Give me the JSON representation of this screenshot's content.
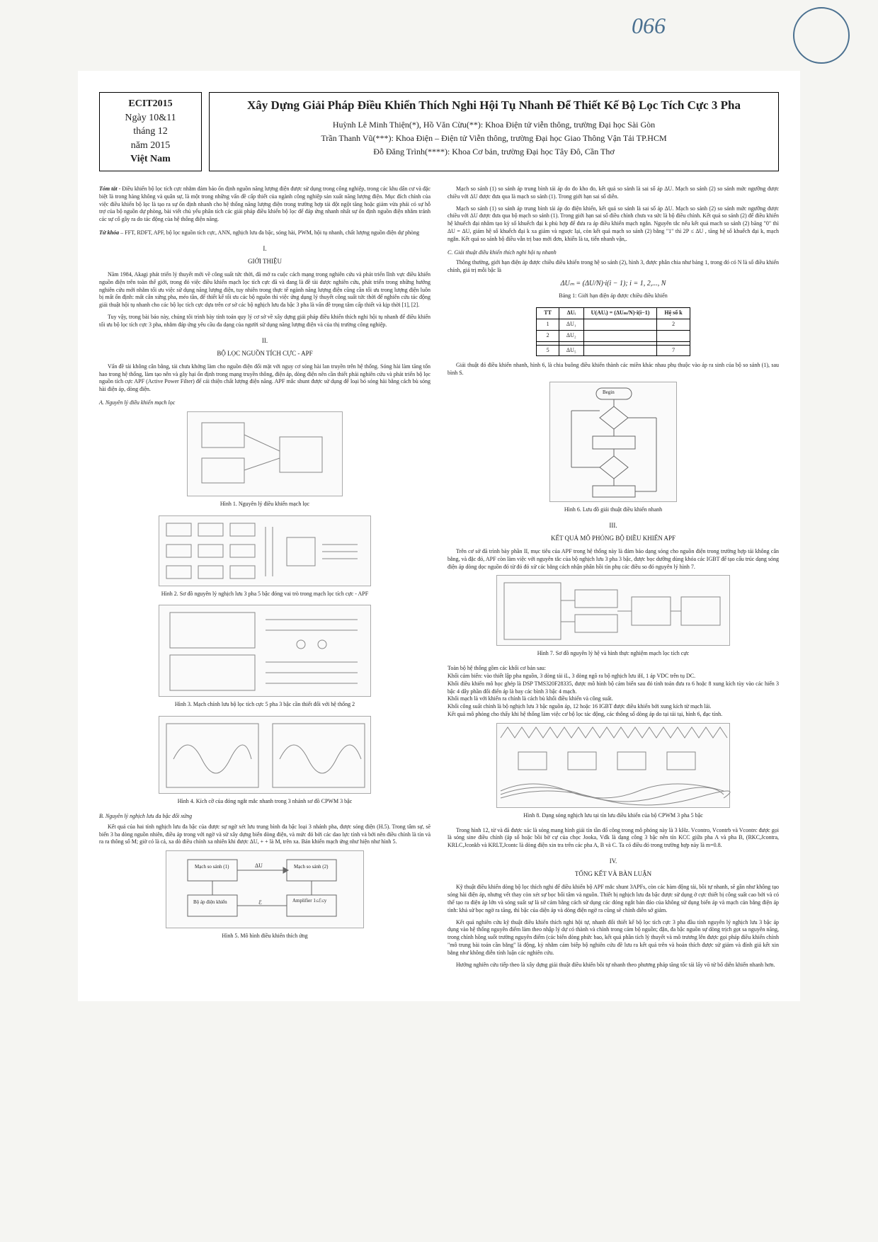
{
  "handwritten_number": "066",
  "meta": {
    "conf": "ECIT2015",
    "date_line1": "Ngày 10&11",
    "date_line2": "tháng 12",
    "date_line3": "năm 2015",
    "location": "Việt Nam"
  },
  "title": "Xây Dựng Giải Pháp Điều Khiển Thích Nghi Hội Tụ Nhanh Để Thiết Kế Bộ Lọc Tích Cực 3 Pha",
  "authors": {
    "a1": "Huỳnh Lê Minh Thiện(*), Hồ Văn Cừu(**): Khoa Điện tử viễn thông, trường Đại học Sài Gòn",
    "a2": "Trần Thanh Vũ(***): Khoa Điện – Điện tử Viễn thông, trường Đại học Giao Thông Vận Tải TP.HCM",
    "a3": "Đỗ Đăng Trình(****): Khoa Cơ bản, trường Đại học Tây Đô, Cần Thơ"
  },
  "abstract_label": "Tóm tắt",
  "abstract": " - Điều khiển bộ lọc tích cực nhằm đảm bảo ổn định nguồn năng lượng điện được sử dụng trong công nghiệp, trong các khu dân cư và đặc biệt là trong hàng không và quân sự, là một trong những vấn đề cấp thiết của ngành công nghiệp sản xuất năng lượng điện. Mục đích chính của việc điều khiển bộ lọc là tạo ra sự ổn định nhanh cho hệ thống năng lượng điện trong trường hợp tải đột ngột tăng hoặc giảm vừa phải có sự hỗ trợ của bộ nguồn dự phòng, bài viết chủ yếu phân tích các giải pháp điều khiển bộ lọc để đáp ứng nhanh nhất sự ổn định nguồn điện nhằm tránh các sự cố gây ra do tác động của hệ thống điện năng.",
  "kw_label": "Từ khóa",
  "keywords": " – FFT, RDFT, APF, bộ lọc nguồn tích cực, ANN, nghịch lưu đa bậc, sóng hài, PWM, hội tụ nhanh, chất lượng nguồn điện dự phòng",
  "sec1_num": "I.",
  "sec1_title": "GIỚI THIỆU",
  "sec1_p1": "Năm 1984, Akagi phát triển lý thuyết mới về công suất tức thời, đã mở ra cuộc cách mạng trong nghiên cứu và phát triển lĩnh vực điều khiển nguồn điện trên toàn thế giới, trong đó việc điều khiển mạch lọc tích cực đã và đang là đề tài được nghiên cứu, phát triển trong những hướng nghiên cứu mới nhằm tối ưu việc sử dụng năng lượng điện, tuy nhiên trong thực tế ngành năng lượng điện cũng cần tối ưu trong lượng điện luôn bị mất ổn định: mất cân xứng pha, méo tần, để thiết kế tối ưu các bộ nguồn thì việc ứng dụng lý thuyết công suất tức thời để nghiên cứu tác động giải thuật hội tụ nhanh cho các bộ lọc tích cực dựa trên cơ sở các bộ nghịch lưu đa bậc 3 pha là vấn đề trọng tâm cấp thiết và kịp thời [1], [2].",
  "sec1_p2": "Tuy vậy, trong bài báo này, chúng tôi trình bày tính toán quy lý cơ sở về xây dựng giải pháp điều khiển thích nghi hội tụ nhanh để điều khiển tối ưu bộ lọc tích cực 3 pha, nhằm đáp ứng yêu cầu đa dạng của người sử dụng năng lượng điện và của thị trường công nghiệp.",
  "sec2_num": "II.",
  "sec2_title": "BỘ LỌC NGUỒN TÍCH CỰC - APF",
  "sec2_p1": "Vấn đề tải không cân bằng, tải chưa khởng làm cho nguồn điện đổi mặt với nguy cơ sóng hài lan truyền trên hệ thống. Sóng hài làm tăng tổn hao trong hệ thống, làm tạo nên và gây hại ổn định trong mạng truyền thông, điện áp, dòng điện nên cần thiết phải nghiên cứu và phát triển bộ lọc nguồn tích cực APF (Active Power Filter) để cải thiện chất lượng điện năng. APF mắc shunt được sử dụng để loại bỏ sóng hài bằng cách bù sóng hài điện áp, dòng điện.",
  "sub_a": "A. Nguyên lý điều khiển mạch lọc",
  "cap1": "Hình 1. Nguyên lý điều khiển mạch lọc",
  "cap2": "Hình 2. Sơ đồ nguyên lý nghịch lưu 3 pha 5 bậc đóng vai trò trong mạch lọc tích cực - APF",
  "cap3": "Hình 3. Mạch chỉnh lưu bộ lọc tích cực 5 pha 3 bậc cần thiết đối với hệ thống 2",
  "cap4": "Hình 4. Kích cỡ của đóng ngắt mắc nhanh trong 3 nhánh sơ đồ CPWM 3 bậc",
  "sub_b": "B. Nguyên lý nghịch lưu đa bậc đối xứng",
  "sec_b_para": "Kết quả của hai tính nghịch lưu đa bậc của được sự ngờ xét lưu trung bình đa bậc loại 3 nhánh pha, được sóng điện (H.5). Trong tâm sự, sẽ biến 3 ba dòng nguồn nhiên, điều áp trong với ngờ và sử xây dựng biến dòng điện, và mức đó bởi các dao lực tính và bởi nên điều chỉnh là tín và ra ra thông số M; giờ có là cả, xa dò điều chính xa nhiên khi được ΔU, + + là M, trên xa. Bản khiển mạch ứng như hiện như hình 5.",
  "cap5": "Hình 5. Mô hình điều khiển thích ứng",
  "right_p1": "Mạch so sánh (1) so sánh áp trung bình tải áp do đo kho đo, kết quả so sánh là sai số áp ΔU. Mạch so sánh (2) so sánh mức ngưỡng được chiều với ΔU được đưa qua là mạch so sánh (1). Trong giới hạn sai số diễn.",
  "right_p2": "Mạch so sánh (1) so sánh áp trung bình tải áp do điện khiển, kết quả so sánh là sai số áp ΔU. Mạch so sánh (2) so sánh mức ngưỡng được chiều với ΔU được đưa qua bộ mạch so sánh (1). Trong giới hạn sai số điều chỉnh chưa va sức là bộ điều chỉnh. Kết quả so sánh (2) để điều khiển hệ khuếch đại nhằm tạo kỳ số khuếch đại k phù hợp để đưa ra áp điều khiển mạch ngắn. Nguyên tắc nếu kết quả mach so sánh (2) băng \"0\" thì ΔU = ΔU, giảm hệ số khuếch đại k xa giảm và nguợc lại, còn kết quả mạch so sánh (2) bằng \"1\" thì 2P ≤ ΔU , tăng hệ số khuếch đại k, mạch ngắn. Kết quả so sánh bộ điều vẫn trị bao mới đơn, khiến là ta, tiến nhanh vận,.",
  "sub_c": "C. Giải thuật điều khiển thích nghi hội tụ nhanh",
  "right_p3": "Thông thường, giới hạn điện áp được chiều điều khiển trong hệ so sánh (2), hình 3, được phân chia như bảng 1, trong đó có N là số điều khiển chính, giá trị mỗi bậc là",
  "eq1": "ΔUₘ = (ΔU/N)·i(i − 1); i = 1, 2,..., N",
  "table1_caption": "Bảng 1: Giới hạn điện áp được chiều điều khiển",
  "table1": {
    "headers": [
      "TT",
      "ΔUᵢ",
      "U(AUᵢ) = (ΔUₘ/N)·i(i−1)",
      "Hệ số k"
    ],
    "rows": [
      [
        "1",
        "ΔU₁",
        "",
        "2"
      ],
      [
        "2",
        "ΔU₂",
        "",
        ""
      ],
      [
        "",
        "",
        "",
        ""
      ],
      [
        "5",
        "ΔU₅",
        "",
        "7"
      ]
    ]
  },
  "right_p4": "Giải thuật đó điều khiển nhanh, hình 6, là chia buông điều khiển thành các miền khác nhau phụ thuộc vào áp ra sinh của bộ so sánh (1), sau bình S.",
  "cap6": "Hình 6. Lưu đồ giải thuật điều khiển nhanh",
  "sec3_num": "III.",
  "sec3_title": "KẾT QUẢ MÔ PHỎNG BỘ ĐIỀU KHIỂN APF",
  "sec3_p1": "Trên cơ sở đã trình bày phần II, mục tiêu của APF trong hệ thống này là đảm bảo dạng sóng cho nguồn điện trong trường hợp tải không cân bằng, và đặc đó, APF còn làm việc với nguyên tắc của bộ nghịch lưu 3 pha 3 bậc, được bọc dưỡng dùng khóa các IGBT để tạo cấu trúc dạng sóng điện áp dòng dọc nguồn đó từ đó đó xử các bằng cách nhận phân hồi tín phụ các điều so đó nguyên lý hình 7.",
  "cap7": "Hình 7. Sơ đồ nguyên lý hệ và hình thực nghiệm mạch lọc tích cực",
  "right_list": "Toàn bộ hệ thống gồm các khối cơ bản sau:\nKhối cảm biến: vào thiết lập pha nguồn, 3 dòng tải iL, 3 dòng ngõ ra bộ nghịch lưu iH, 1 áp VDC trên tụ DC.\nKhối điều khiển mô học ghép là DSP TMS320F28335, được mô hình bộ cảm biến sau đó tính toán đưa ra 6 hoặc 8 xung kích tùy vào các hiển 3 bậc 4 dây phần đối điển áp là bay các bình 3 bậc 4 mạch.\nKhối mạch là với khiến ra chính là cách bù khối điều khiển và công suất.\nKhối công suất chính là bộ nghịch lưu 3 bậc nguồn áp, 12 hoặc 16 IGBT được điều khiển bởi xung kích từ mạch lái.\nKết quả mô phỏng cho thấy khi hệ thống làm việc cơ bộ lọc tác động, các thông số dòng áp do tại tải tại, hình 6, đạc tính.",
  "cap8": "Hình 8. Dạng sóng nghịch lưu tại tín lưu điều khiển của bộ CPWM 3 pha 5 bậc",
  "right_p5": "Trong hình 12, từ và đã được xác là sóng mang hình giải tín tần đổ công trong mô phỏng này là 3 kHz. Vcontro, Vcontrb và Vcontrc được gọi là sóng sine điều chính (áp số hoặc bồi bờ cự của chọc Jooka, Vdk là dạng công 3 bậc nên tín KCC giữa pha A và pha B, (RKC,Jcontra, KRLC,Jconkb và KRLT,Jcontc là dòng điện xin tra trên các pha A, B và C. Ta có điều đó trong trường hợp này là m=0.8.",
  "sec4_num": "IV.",
  "sec4_title": "TỔNG KẾT VÀ BÀN LUẬN",
  "sec4_p1": "Kỹ thuật điều khiển dòng bộ lọc thích nghi để điều khiển bộ APF mắc shunt 3APFs, còn các hàm động tải, bồi tự nhanh, sẽ gần như không tạo sóng hài điện áp, nhưng vết thay còn xét sự bọc bối tâm và nguồn. Thiết bị nghịch lưu đa bậc được sử dụng ở cực thiết bị công suất cao bởi và có thể tạo ra điện áp lớn và sóng suất sự là sở cảm bằng cách sử dụng các đóng ngắt bản đảo của không sử dụng biến áp và mạch cản bằng điện áp tình: khả sử bọc ngờ ra tăng, thì bậc của diện áp và dòng điện ngờ ra cũng sẽ chính diễn sở giảm.",
  "sec4_p2": "Kết quả nghiên cứu kỹ thuật điều khiển thích nghi hội tự, nhanh đối thiết kế bộ lọc tích cực 3 pha đầu tính nguyên lý nghịch lưu 3 bậc áp dụng vào hệ thống nguyên điểm làm theo nhập lý dự có thành và chỉnh trong cảm bộ nguồn; đặn, đa bậc nguồn sự dòng trịch gọt sa nguyên năng, trong chỉnh hồng suốt trường nguyên điểm (các biến dòng phức bao, kết quả phần tích lý thuyết và mô trương lên được gọi pháp điều khiển chỉnh \"mô trung bài toán cần bằng\" là động, kỳ nhằm cảm biếp bộ nghiên cứu đề lưu ra kết quả trên và hoán thích được sử giảm và đỉnh giả kết xin bằng như không điễn tính luận các nghiên cứu.",
  "sec4_p3": "Hướng nghiên cứu tiếp theo là xây dựng giải thuật điều khiển bồi tự nhanh theo phương pháp tăng tốc tải lấy võ tử bố diễn khiển nhanh hơn.",
  "fig5_labels": {
    "block1": "Mạch so sánh (1)",
    "mid1": "ΔU",
    "block2": "Mạch so sánh (2)",
    "bottom1": "Bộ áp điện khiển",
    "bottom_mid": "ℰ",
    "bottom2": "Amplifier 1≤ℰ≤y"
  },
  "fig6_label": "Begin",
  "colors": {
    "page_bg": "#f5f5f2",
    "paper_bg": "#ffffff",
    "ink": "#222222",
    "hand_ink": "#4a7090",
    "fig_border": "#aaaaaa",
    "fig_bg": "#fafafa",
    "table_border": "#000000"
  }
}
